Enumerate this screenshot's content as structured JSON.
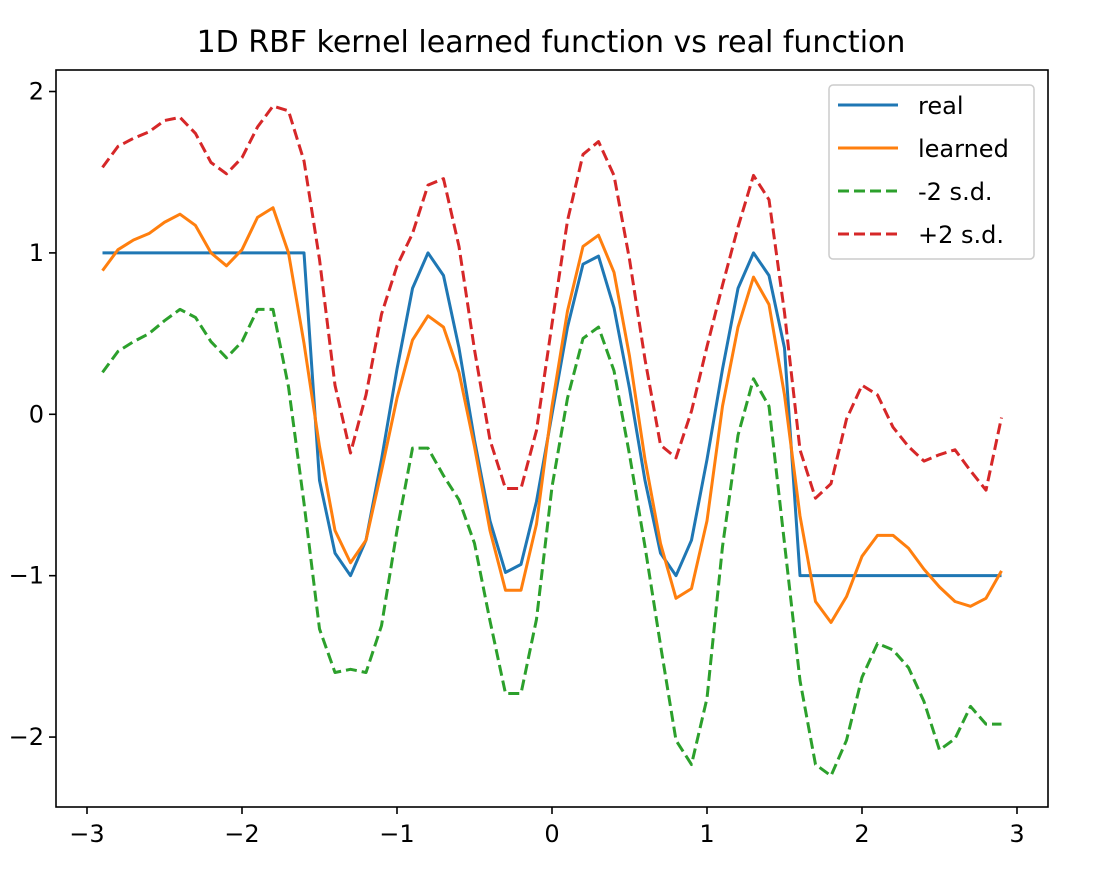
{
  "chart_data": {
    "type": "line",
    "title": "1D RBF kernel learned function vs real function",
    "xlabel": "",
    "ylabel": "",
    "xlim": [
      -3.2,
      3.2
    ],
    "ylim": [
      -2.4333,
      2.1333
    ],
    "x_ticks": [
      -3,
      -2,
      -1,
      0,
      1,
      2,
      3
    ],
    "x_tick_labels": [
      "−3",
      "−2",
      "−1",
      "0",
      "1",
      "2",
      "3"
    ],
    "y_ticks": [
      -2,
      -1,
      0,
      1,
      2
    ],
    "y_tick_labels": [
      "−2",
      "−1",
      "0",
      "1",
      "2"
    ],
    "grid": false,
    "legend": {
      "placement": "top-right"
    },
    "x": [
      -2.9,
      -2.8,
      -2.7,
      -2.6,
      -2.5,
      -2.4,
      -2.3,
      -2.2,
      -2.1,
      -2.0,
      -1.9,
      -1.8,
      -1.7,
      -1.6,
      -1.5,
      -1.4,
      -1.3,
      -1.2,
      -1.1,
      -1.0,
      -0.9,
      -0.8,
      -0.7,
      -0.6,
      -0.5,
      -0.4,
      -0.3,
      -0.2,
      -0.1,
      0.0,
      0.1,
      0.2,
      0.3,
      0.4,
      0.5,
      0.6,
      0.7,
      0.8,
      0.9,
      1.0,
      1.1,
      1.2,
      1.3,
      1.4,
      1.5,
      1.6,
      1.7,
      1.8,
      1.9,
      2.0,
      2.1,
      2.2,
      2.3,
      2.4,
      2.5,
      2.6,
      2.7,
      2.8,
      2.9
    ],
    "series": [
      {
        "name": "real",
        "color": "#1f77b4",
        "dash": "solid",
        "values": [
          1.0,
          1.0,
          1.0,
          1.0,
          1.0,
          1.0,
          1.0,
          1.0,
          1.0,
          1.0,
          1.0,
          1.0,
          1.0,
          1.0,
          -0.41,
          -0.86,
          -1.0,
          -0.78,
          -0.28,
          0.28,
          0.78,
          1.0,
          0.86,
          0.41,
          -0.16,
          -0.66,
          -0.98,
          -0.93,
          -0.54,
          0.0,
          0.54,
          0.93,
          0.98,
          0.66,
          0.16,
          -0.41,
          -0.86,
          -1.0,
          -0.78,
          -0.28,
          0.28,
          0.78,
          1.0,
          0.86,
          0.41,
          -1.0,
          -1.0,
          -1.0,
          -1.0,
          -1.0,
          -1.0,
          -1.0,
          -1.0,
          -1.0,
          -1.0,
          -1.0,
          -1.0,
          -1.0,
          -1.0
        ]
      },
      {
        "name": "learned",
        "color": "#ff7f0e",
        "dash": "solid",
        "values": [
          0.89,
          1.02,
          1.08,
          1.12,
          1.19,
          1.24,
          1.17,
          1.0,
          0.92,
          1.02,
          1.22,
          1.28,
          1.0,
          0.44,
          -0.2,
          -0.72,
          -0.92,
          -0.78,
          -0.35,
          0.1,
          0.46,
          0.61,
          0.54,
          0.26,
          -0.2,
          -0.72,
          -1.09,
          -1.09,
          -0.68,
          0.05,
          0.64,
          1.04,
          1.11,
          0.88,
          0.36,
          -0.28,
          -0.8,
          -1.14,
          -1.08,
          -0.66,
          0.05,
          0.54,
          0.85,
          0.68,
          0.12,
          -0.63,
          -1.16,
          -1.29,
          -1.13,
          -0.88,
          -0.75,
          -0.75,
          -0.83,
          -0.96,
          -1.07,
          -1.16,
          -1.19,
          -1.14,
          -0.97
        ]
      },
      {
        "name": "-2 s.d.",
        "color": "#2ca02c",
        "dash": "dashed",
        "values": [
          0.26,
          0.39,
          0.45,
          0.5,
          0.58,
          0.65,
          0.6,
          0.45,
          0.35,
          0.45,
          0.65,
          0.65,
          0.17,
          -0.55,
          -1.33,
          -1.6,
          -1.58,
          -1.6,
          -1.31,
          -0.72,
          -0.21,
          -0.21,
          -0.38,
          -0.53,
          -0.8,
          -1.28,
          -1.73,
          -1.73,
          -1.27,
          -0.45,
          0.1,
          0.47,
          0.54,
          0.27,
          -0.25,
          -0.82,
          -1.43,
          -2.02,
          -2.17,
          -1.76,
          -0.82,
          -0.13,
          0.22,
          0.05,
          -0.8,
          -1.65,
          -2.17,
          -2.24,
          -2.02,
          -1.63,
          -1.42,
          -1.46,
          -1.57,
          -1.78,
          -2.08,
          -2.01,
          -1.81,
          -1.92,
          -1.92
        ]
      },
      {
        "name": "+2 s.d.",
        "color": "#d62728",
        "dash": "dashed",
        "values": [
          1.53,
          1.66,
          1.71,
          1.75,
          1.82,
          1.84,
          1.74,
          1.56,
          1.49,
          1.59,
          1.78,
          1.91,
          1.88,
          1.57,
          0.96,
          0.18,
          -0.24,
          0.12,
          0.62,
          0.92,
          1.12,
          1.42,
          1.46,
          1.04,
          0.4,
          -0.16,
          -0.46,
          -0.46,
          -0.1,
          0.56,
          1.2,
          1.61,
          1.69,
          1.48,
          0.96,
          0.34,
          -0.19,
          -0.27,
          0.02,
          0.42,
          0.8,
          1.16,
          1.48,
          1.33,
          0.63,
          -0.22,
          -0.52,
          -0.43,
          -0.03,
          0.18,
          0.12,
          -0.08,
          -0.2,
          -0.29,
          -0.25,
          -0.22,
          -0.35,
          -0.47,
          -0.02
        ]
      }
    ]
  }
}
